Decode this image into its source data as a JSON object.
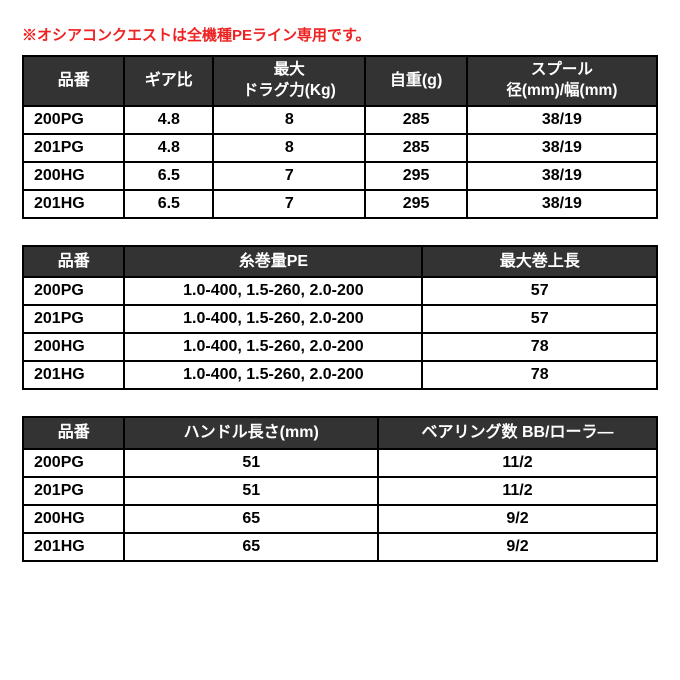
{
  "colors": {
    "note": "#ee2222",
    "header_bg": "#333333",
    "header_fg": "#ffffff",
    "border": "#000000",
    "body_bg": "#ffffff",
    "text": "#000000"
  },
  "note": "※オシアコンクエストは全機種PEライン専用です。",
  "table1": {
    "headers": {
      "model": "品番",
      "gear": "ギア比",
      "drag_l1": "最大",
      "drag_l2": "ドラグ力(Kg)",
      "weight": "自重(g)",
      "spool_l1": "スプール",
      "spool_l2": "径(mm)/幅(mm)"
    },
    "rows": [
      {
        "model": "200PG",
        "gear": "4.8",
        "drag": "8",
        "weight": "285",
        "spool": "38/19"
      },
      {
        "model": "201PG",
        "gear": "4.8",
        "drag": "8",
        "weight": "285",
        "spool": "38/19"
      },
      {
        "model": "200HG",
        "gear": "6.5",
        "drag": "7",
        "weight": "295",
        "spool": "38/19"
      },
      {
        "model": "201HG",
        "gear": "6.5",
        "drag": "7",
        "weight": "295",
        "spool": "38/19"
      }
    ]
  },
  "table2": {
    "headers": {
      "model": "品番",
      "pe": "糸巻量PE",
      "retrieve": "最大巻上長"
    },
    "rows": [
      {
        "model": "200PG",
        "pe": "1.0-400, 1.5-260, 2.0-200",
        "retrieve": "57"
      },
      {
        "model": "201PG",
        "pe": "1.0-400, 1.5-260, 2.0-200",
        "retrieve": "57"
      },
      {
        "model": "200HG",
        "pe": "1.0-400, 1.5-260, 2.0-200",
        "retrieve": "78"
      },
      {
        "model": "201HG",
        "pe": "1.0-400, 1.5-260, 2.0-200",
        "retrieve": "78"
      }
    ]
  },
  "table3": {
    "headers": {
      "model": "品番",
      "handle": "ハンドル長さ(mm)",
      "bearings": "ベアリング数 BB/ローラ―"
    },
    "rows": [
      {
        "model": "200PG",
        "handle": "51",
        "bearings": "11/2"
      },
      {
        "model": "201PG",
        "handle": "51",
        "bearings": "11/2"
      },
      {
        "model": "200HG",
        "handle": "65",
        "bearings": "9/2"
      },
      {
        "model": "201HG",
        "handle": "65",
        "bearings": "9/2"
      }
    ]
  }
}
